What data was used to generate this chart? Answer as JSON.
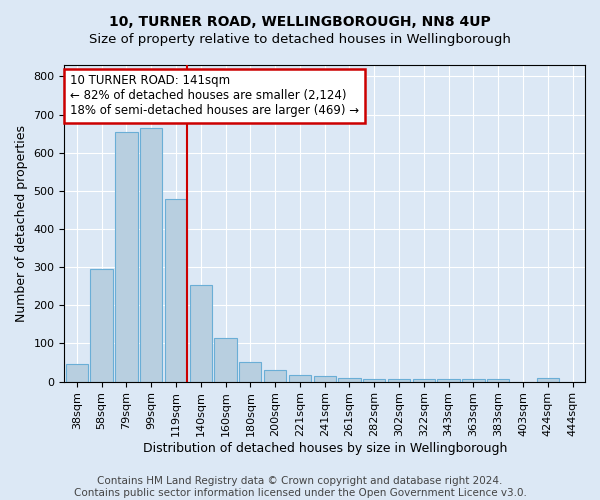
{
  "title1": "10, TURNER ROAD, WELLINGBOROUGH, NN8 4UP",
  "title2": "Size of property relative to detached houses in Wellingborough",
  "xlabel": "Distribution of detached houses by size in Wellingborough",
  "ylabel": "Number of detached properties",
  "footer1": "Contains HM Land Registry data © Crown copyright and database right 2024.",
  "footer2": "Contains public sector information licensed under the Open Government Licence v3.0.",
  "categories": [
    "38sqm",
    "58sqm",
    "79sqm",
    "99sqm",
    "119sqm",
    "140sqm",
    "160sqm",
    "180sqm",
    "200sqm",
    "221sqm",
    "241sqm",
    "261sqm",
    "282sqm",
    "302sqm",
    "322sqm",
    "343sqm",
    "363sqm",
    "383sqm",
    "403sqm",
    "424sqm",
    "444sqm"
  ],
  "values": [
    47,
    295,
    655,
    665,
    478,
    252,
    113,
    52,
    30,
    18,
    15,
    10,
    7,
    7,
    8,
    8,
    8,
    8,
    0,
    10,
    0
  ],
  "bar_color": "#b8cfe0",
  "bar_edge_color": "#6aaed6",
  "red_line_after_index": 4,
  "annotation_text": "10 TURNER ROAD: 141sqm\n← 82% of detached houses are smaller (2,124)\n18% of semi-detached houses are larger (469) →",
  "annotation_box_color": "white",
  "annotation_box_edge_color": "#cc0000",
  "red_line_color": "#cc0000",
  "ylim": [
    0,
    830
  ],
  "background_color": "#dce8f5",
  "grid_color": "white",
  "title1_fontsize": 10,
  "title2_fontsize": 9.5,
  "xlabel_fontsize": 9,
  "ylabel_fontsize": 9,
  "tick_fontsize": 8,
  "footer_fontsize": 7.5
}
